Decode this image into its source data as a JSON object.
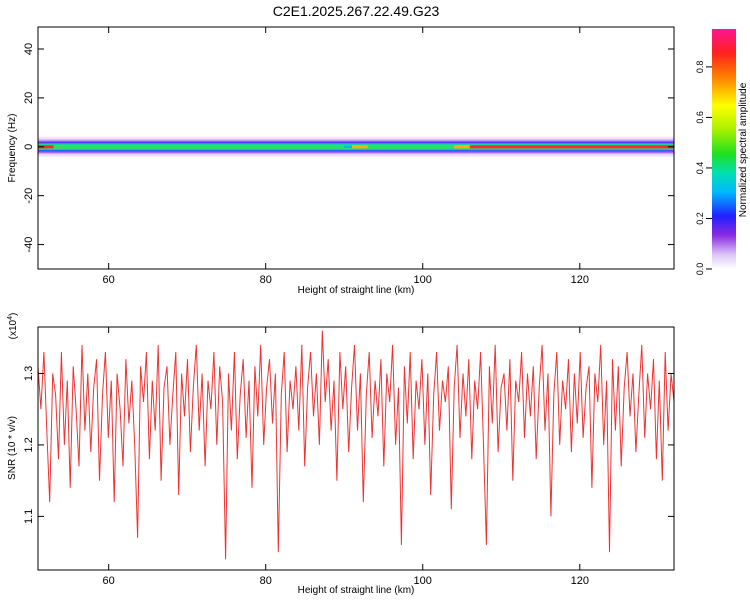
{
  "title": "C2E1.2025.267.22.49.G23",
  "chart_data": [
    {
      "type": "heatmap",
      "xlabel": "Height of straight line (km)",
      "ylabel": "Frequency (Hz)",
      "xlim": [
        51,
        132
      ],
      "ylim": [
        -50,
        49
      ],
      "xticks": [
        60,
        80,
        100,
        120
      ],
      "yticks": [
        -40,
        -20,
        0,
        20,
        40
      ],
      "colorbar": {
        "label": "Normalized spectral amplitude",
        "range": [
          0,
          0.95
        ],
        "ticks": [
          0.0,
          0.2,
          0.4,
          0.6,
          0.8
        ]
      },
      "band": {
        "description_values": "amplitude concentrated near 0 Hz across all heights",
        "center_frequency": 0,
        "peak_amplitude_by_segment": [
          {
            "x": [
              51,
              53
            ],
            "amp": 0.95
          },
          {
            "x": [
              53,
              90
            ],
            "amp": 0.45
          },
          {
            "x": [
              90,
              91
            ],
            "amp": 0.2
          },
          {
            "x": [
              91,
              93
            ],
            "amp": 0.75
          },
          {
            "x": [
              93,
              104
            ],
            "amp": 0.45
          },
          {
            "x": [
              104,
              106
            ],
            "amp": 0.75
          },
          {
            "x": [
              106,
              132
            ],
            "amp": 0.95
          }
        ]
      },
      "grid": false
    },
    {
      "type": "line",
      "xlabel": "Height of straight line (km)",
      "ylabel": "SNR (10 * v/v)",
      "y_multiplier": "(x10^4)",
      "xlim": [
        51,
        132
      ],
      "ylim": [
        1.025,
        1.365
      ],
      "xticks": [
        60,
        80,
        100,
        120
      ],
      "yticks": [
        1.1,
        1.2,
        1.3
      ],
      "series": [
        {
          "color": "#ee3333",
          "x_start": 51,
          "x_end": 132,
          "values": [
            1.31,
            1.25,
            1.33,
            1.22,
            1.12,
            1.3,
            1.27,
            1.18,
            1.33,
            1.2,
            1.29,
            1.14,
            1.31,
            1.25,
            1.17,
            1.34,
            1.22,
            1.3,
            1.19,
            1.28,
            1.32,
            1.15,
            1.27,
            1.33,
            1.21,
            1.29,
            1.12,
            1.3,
            1.25,
            1.17,
            1.32,
            1.23,
            1.29,
            1.2,
            1.07,
            1.31,
            1.26,
            1.33,
            1.18,
            1.29,
            1.22,
            1.34,
            1.15,
            1.28,
            1.31,
            1.2,
            1.27,
            1.33,
            1.13,
            1.3,
            1.24,
            1.32,
            1.19,
            1.28,
            1.34,
            1.22,
            1.3,
            1.17,
            1.29,
            1.25,
            1.33,
            1.2,
            1.31,
            1.26,
            1.04,
            1.3,
            1.22,
            1.33,
            1.18,
            1.27,
            1.32,
            1.21,
            1.29,
            1.14,
            1.31,
            1.24,
            1.34,
            1.2,
            1.28,
            1.32,
            1.23,
            1.3,
            1.05,
            1.27,
            1.33,
            1.19,
            1.29,
            1.25,
            1.31,
            1.22,
            1.34,
            1.17,
            1.28,
            1.33,
            1.24,
            1.3,
            1.2,
            1.36,
            1.26,
            1.32,
            1.22,
            1.29,
            1.15,
            1.33,
            1.25,
            1.31,
            1.19,
            1.28,
            1.34,
            1.22,
            1.3,
            1.12,
            1.27,
            1.33,
            1.21,
            1.29,
            1.24,
            1.32,
            1.17,
            1.3,
            1.26,
            1.34,
            1.2,
            1.28,
            1.06,
            1.31,
            1.23,
            1.33,
            1.18,
            1.29,
            1.25,
            1.32,
            1.2,
            1.3,
            1.13,
            1.27,
            1.33,
            1.22,
            1.29,
            1.26,
            1.31,
            1.11,
            1.28,
            1.34,
            1.21,
            1.3,
            1.24,
            1.32,
            1.18,
            1.29,
            1.25,
            1.33,
            1.2,
            1.06,
            1.31,
            1.23,
            1.34,
            1.19,
            1.28,
            1.3,
            1.22,
            1.32,
            1.15,
            1.29,
            1.26,
            1.33,
            1.21,
            1.3,
            1.24,
            1.31,
            1.18,
            1.28,
            1.34,
            1.22,
            1.3,
            1.1,
            1.27,
            1.33,
            1.2,
            1.29,
            1.25,
            1.32,
            1.19,
            1.3,
            1.23,
            1.33,
            1.21,
            1.28,
            1.31,
            1.14,
            1.3,
            1.26,
            1.34,
            1.2,
            1.29,
            1.05,
            1.32,
            1.22,
            1.31,
            1.17,
            1.28,
            1.33,
            1.24,
            1.3,
            1.19,
            1.27,
            1.34,
            1.21,
            1.3,
            1.25,
            1.32,
            1.18,
            1.29,
            1.15,
            1.33,
            1.22,
            1.3,
            1.26
          ]
        }
      ],
      "grid": false
    }
  ]
}
